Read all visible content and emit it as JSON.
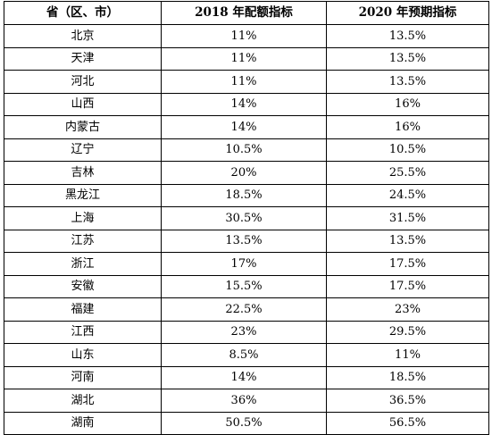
{
  "table": {
    "headers": [
      "省（区、市）",
      "2018 年配额指标",
      "2020 年预期指标"
    ],
    "rows": [
      [
        "北京",
        "11%",
        "13.5%"
      ],
      [
        "天津",
        "11%",
        "13.5%"
      ],
      [
        "河北",
        "11%",
        "13.5%"
      ],
      [
        "山西",
        "14%",
        "16%"
      ],
      [
        "内蒙古",
        "14%",
        "16%"
      ],
      [
        "辽宁",
        "10.5%",
        "10.5%"
      ],
      [
        "吉林",
        "20%",
        "25.5%"
      ],
      [
        "黑龙江",
        "18.5%",
        "24.5%"
      ],
      [
        "上海",
        "30.5%",
        "31.5%"
      ],
      [
        "江苏",
        "13.5%",
        "13.5%"
      ],
      [
        "浙江",
        "17%",
        "17.5%"
      ],
      [
        "安徽",
        "15.5%",
        "17.5%"
      ],
      [
        "福建",
        "22.5%",
        "23%"
      ],
      [
        "江西",
        "23%",
        "29.5%"
      ],
      [
        "山东",
        "8.5%",
        "11%"
      ],
      [
        "河南",
        "14%",
        "18.5%"
      ],
      [
        "湖北",
        "36%",
        "36.5%"
      ],
      [
        "湖南",
        "50.5%",
        "56.5%"
      ]
    ]
  }
}
